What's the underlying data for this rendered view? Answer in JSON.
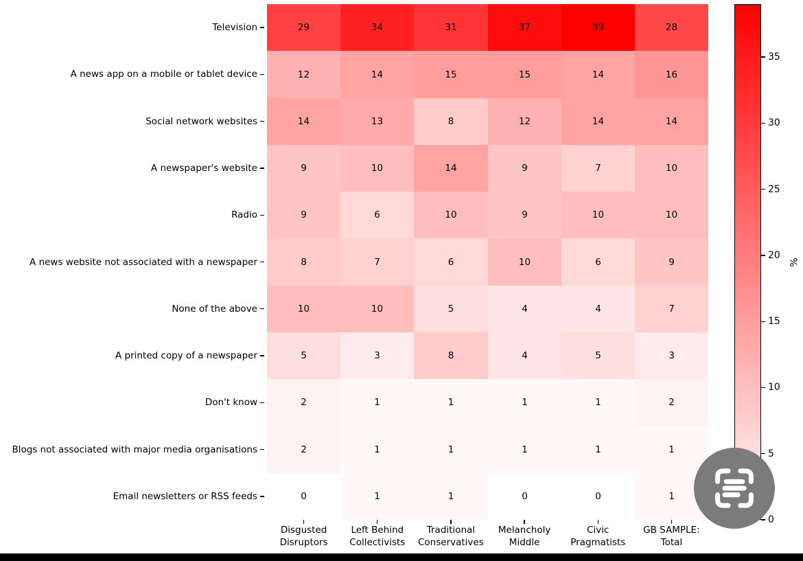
{
  "chart_data": {
    "type": "heatmap",
    "title": "",
    "rows": [
      "Television",
      "A news app on a mobile or tablet device",
      "Social network websites",
      "A newspaper's website",
      "Radio",
      "A news website not associated with a newspaper",
      "None of the above",
      "A printed copy of a newspaper",
      "Don't know",
      "Blogs not associated with major media organisations",
      "Email newsletters or RSS feeds"
    ],
    "columns": [
      "Disgusted\nDisruptors",
      "Left Behind\nCollectivists",
      "Traditional\nConservatives",
      "Melancholy\nMiddle",
      "Civic\nPragmatists",
      "GB SAMPLE:\nTotal"
    ],
    "values": [
      [
        29,
        34,
        31,
        37,
        39,
        28
      ],
      [
        12,
        14,
        15,
        15,
        14,
        16
      ],
      [
        14,
        13,
        8,
        12,
        14,
        14
      ],
      [
        9,
        10,
        14,
        9,
        7,
        10
      ],
      [
        9,
        6,
        10,
        9,
        10,
        10
      ],
      [
        8,
        7,
        6,
        10,
        6,
        9
      ],
      [
        10,
        10,
        5,
        4,
        4,
        7
      ],
      [
        5,
        3,
        8,
        4,
        5,
        3
      ],
      [
        2,
        1,
        1,
        1,
        1,
        2
      ],
      [
        2,
        1,
        1,
        1,
        1,
        1
      ],
      [
        0,
        1,
        1,
        0,
        0,
        1
      ]
    ],
    "annotation_color": "#000000",
    "grid": false,
    "colorbar": {
      "label": "%",
      "ticks": [
        0,
        5,
        10,
        15,
        20,
        25,
        30,
        35
      ],
      "vmin": 0,
      "vmax": 39,
      "color_low": "#ffffff",
      "color_high": "#ff0000",
      "position": "right"
    }
  },
  "watermark": {
    "icon": "scan-text-icon",
    "bg_color": "#7b7b7b",
    "glyph_color": "#ffffff"
  },
  "footer": {
    "bar_color": "#000000"
  }
}
